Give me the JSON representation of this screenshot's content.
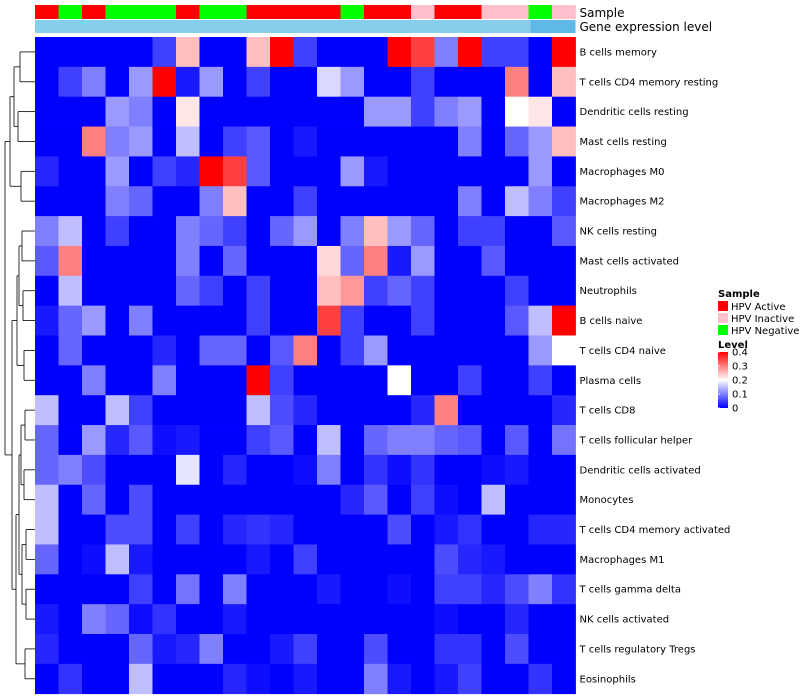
{
  "chart_data": {
    "type": "heatmap",
    "annotation_labels": {
      "sample": "Sample",
      "gene": "Gene expression level"
    },
    "sample_groups": [
      "Active",
      "Negative",
      "Active",
      "Negative",
      "Negative",
      "Negative",
      "Active",
      "Negative",
      "Negative",
      "Active",
      "Active",
      "Active",
      "Active",
      "Negative",
      "Active",
      "Active",
      "Inactive",
      "Active",
      "Active",
      "Inactive",
      "Inactive",
      "Negative",
      "Inactive"
    ],
    "rows": [
      "B cells memory",
      "T cells CD4 memory resting",
      "Dendritic cells resting",
      "Mast cells resting",
      "Macrophages M0",
      "Macrophages M2",
      "NK cells resting",
      "Mast cells activated",
      "Neutrophils",
      "B cells naive",
      "T cells CD4 naive",
      "Plasma cells",
      "T cells CD8",
      "T cells follicular helper",
      "Dendritic cells activated",
      "Monocytes",
      "T cells CD4 memory activated",
      "Macrophages M1",
      "T cells gamma delta",
      "NK cells activated",
      "T cells regulatory  Tregs",
      "Eosinophils"
    ],
    "values": [
      [
        0,
        0,
        0,
        0,
        0,
        0.05,
        0.25,
        0,
        0,
        0.25,
        0.4,
        0.05,
        0,
        0,
        0,
        0.4,
        0.35,
        0.1,
        0.4,
        0.05,
        0.05,
        0,
        0.4
      ],
      [
        0,
        0.05,
        0.1,
        0,
        0.12,
        0.4,
        0.02,
        0.12,
        0,
        0.05,
        0,
        0,
        0.17,
        0.12,
        0,
        0,
        0.05,
        0,
        0,
        0,
        0.3,
        0,
        0.25
      ],
      [
        0,
        0,
        0,
        0.12,
        0.1,
        0,
        0.22,
        0,
        0,
        0,
        0,
        0,
        0,
        0,
        0.12,
        0.12,
        0.05,
        0.1,
        0.12,
        0,
        0.2,
        0.22,
        0
      ],
      [
        0,
        0,
        0.3,
        0.1,
        0.12,
        0,
        0.15,
        0,
        0.05,
        0.07,
        0,
        0.02,
        0,
        0,
        0,
        0,
        0,
        0,
        0.1,
        0,
        0.08,
        0.12,
        0.25
      ],
      [
        0.03,
        0,
        0,
        0.12,
        0,
        0.05,
        0.03,
        0.4,
        0.35,
        0.07,
        0,
        0,
        0,
        0.12,
        0.02,
        0,
        0,
        0,
        0,
        0,
        0,
        0.12,
        0
      ],
      [
        0,
        0,
        0,
        0.1,
        0.08,
        0,
        0,
        0.1,
        0.25,
        0,
        0,
        0.05,
        0,
        0,
        0,
        0,
        0,
        0,
        0.1,
        0,
        0.15,
        0.1,
        0.05
      ],
      [
        0.1,
        0.15,
        0,
        0.05,
        0,
        0,
        0.1,
        0.08,
        0.05,
        0,
        0.08,
        0.12,
        0,
        0.1,
        0.25,
        0.12,
        0.08,
        0,
        0.05,
        0.05,
        0,
        0,
        0.07
      ],
      [
        0.07,
        0.3,
        0,
        0,
        0,
        0,
        0.1,
        0,
        0.08,
        0,
        0,
        0,
        0.23,
        0.08,
        0.3,
        0.02,
        0.12,
        0,
        0,
        0.07,
        0,
        0,
        0
      ],
      [
        0,
        0.15,
        0,
        0,
        0,
        0,
        0.08,
        0.05,
        0,
        0.05,
        0,
        0,
        0.25,
        0.28,
        0.05,
        0.08,
        0.05,
        0,
        0,
        0,
        0.05,
        0,
        0
      ],
      [
        0.02,
        0.08,
        0.12,
        0,
        0.1,
        0,
        0,
        0,
        0,
        0.05,
        0,
        0,
        0.35,
        0.05,
        0,
        0,
        0.05,
        0,
        0,
        0,
        0.07,
        0.15,
        0.4
      ],
      [
        0,
        0.08,
        0,
        0,
        0,
        0.03,
        0,
        0.08,
        0.08,
        0,
        0.07,
        0.3,
        0,
        0.05,
        0.12,
        0,
        0,
        0,
        0,
        0,
        0,
        0.12,
        0.2
      ],
      [
        0,
        0,
        0.1,
        0,
        0,
        0.1,
        0,
        0,
        0,
        0.4,
        0.05,
        0,
        0,
        0,
        0,
        0.2,
        0,
        0,
        0.05,
        0,
        0,
        0.05,
        0
      ],
      [
        0.15,
        0,
        0,
        0.15,
        0.05,
        0,
        0,
        0,
        0,
        0.15,
        0.06,
        0.03,
        0,
        0,
        0,
        0,
        0.03,
        0.3,
        0,
        0,
        0,
        0,
        0.03
      ],
      [
        0.08,
        0,
        0.12,
        0.03,
        0.07,
        0.01,
        0.02,
        0,
        0,
        0.05,
        0.07,
        0,
        0.15,
        0,
        0.08,
        0.1,
        0.1,
        0.08,
        0.07,
        0,
        0.07,
        0,
        0.09
      ],
      [
        0.08,
        0.1,
        0.06,
        0,
        0,
        0,
        0.18,
        0,
        0.03,
        0,
        0,
        0.01,
        0.1,
        0,
        0.04,
        0.01,
        0.04,
        0,
        0,
        0.01,
        0.02,
        0,
        0
      ],
      [
        0.15,
        0,
        0.08,
        0,
        0.06,
        0,
        0,
        0,
        0,
        0,
        0,
        0,
        0,
        0.03,
        0.07,
        0,
        0.05,
        0.01,
        0,
        0.15,
        0,
        0,
        0
      ],
      [
        0.15,
        0,
        0,
        0.06,
        0.06,
        0,
        0.05,
        0,
        0.03,
        0.04,
        0.03,
        0,
        0,
        0,
        0,
        0.06,
        0,
        0.02,
        0.04,
        0,
        0,
        0.03,
        0.03
      ],
      [
        0.08,
        0,
        0.01,
        0.15,
        0.02,
        0,
        0,
        0,
        0,
        0.02,
        0,
        0.05,
        0,
        0,
        0,
        0,
        0,
        0.06,
        0.03,
        0.02,
        0,
        0,
        0
      ],
      [
        0,
        0,
        0,
        0,
        0.05,
        0,
        0.09,
        0,
        0.1,
        0,
        0,
        0,
        0.02,
        0,
        0,
        0.01,
        0,
        0.05,
        0.05,
        0.03,
        0.06,
        0.1,
        0.04
      ],
      [
        0.02,
        0,
        0.1,
        0.08,
        0.01,
        0.04,
        0,
        0,
        0.02,
        0,
        0,
        0,
        0,
        0,
        0,
        0,
        0,
        0.01,
        0,
        0,
        0.03,
        0,
        0
      ],
      [
        0.03,
        0,
        0,
        0,
        0.08,
        0.02,
        0.03,
        0.1,
        0,
        0,
        0.02,
        0.05,
        0,
        0,
        0.06,
        0,
        0,
        0.04,
        0.04,
        0,
        0.06,
        0,
        0
      ],
      [
        0,
        0.04,
        0,
        0,
        0.15,
        0,
        0,
        0,
        0.03,
        0.01,
        0,
        0.02,
        0,
        0,
        0.1,
        0.02,
        0,
        0.02,
        0.05,
        0,
        0,
        0.04,
        0
      ]
    ],
    "legends": {
      "sample": {
        "title": "Sample",
        "entries": [
          {
            "key": "Active",
            "label": "HPV Active",
            "color": "#ff0000"
          },
          {
            "key": "Inactive",
            "label": "HPV Inactive",
            "color": "#ffc0cb"
          },
          {
            "key": "Negative",
            "label": "HPV Negative",
            "color": "#00ff00"
          }
        ]
      },
      "level": {
        "title": "Level",
        "min": 0,
        "max": 0.4,
        "ticks": [
          {
            "v": 0.4,
            "t": "0.4"
          },
          {
            "v": 0.3,
            "t": "0.3"
          },
          {
            "v": 0.2,
            "t": "0.2"
          },
          {
            "v": 0.1,
            "t": "0.1"
          },
          {
            "v": 0,
            "t": "0"
          }
        ]
      }
    },
    "colors": {
      "low": "#0000ff",
      "mid": "#ffffff",
      "high": "#ff0000",
      "gene_bar": "#87ceeb",
      "gene_bar_end": "#5fb8e6"
    }
  }
}
